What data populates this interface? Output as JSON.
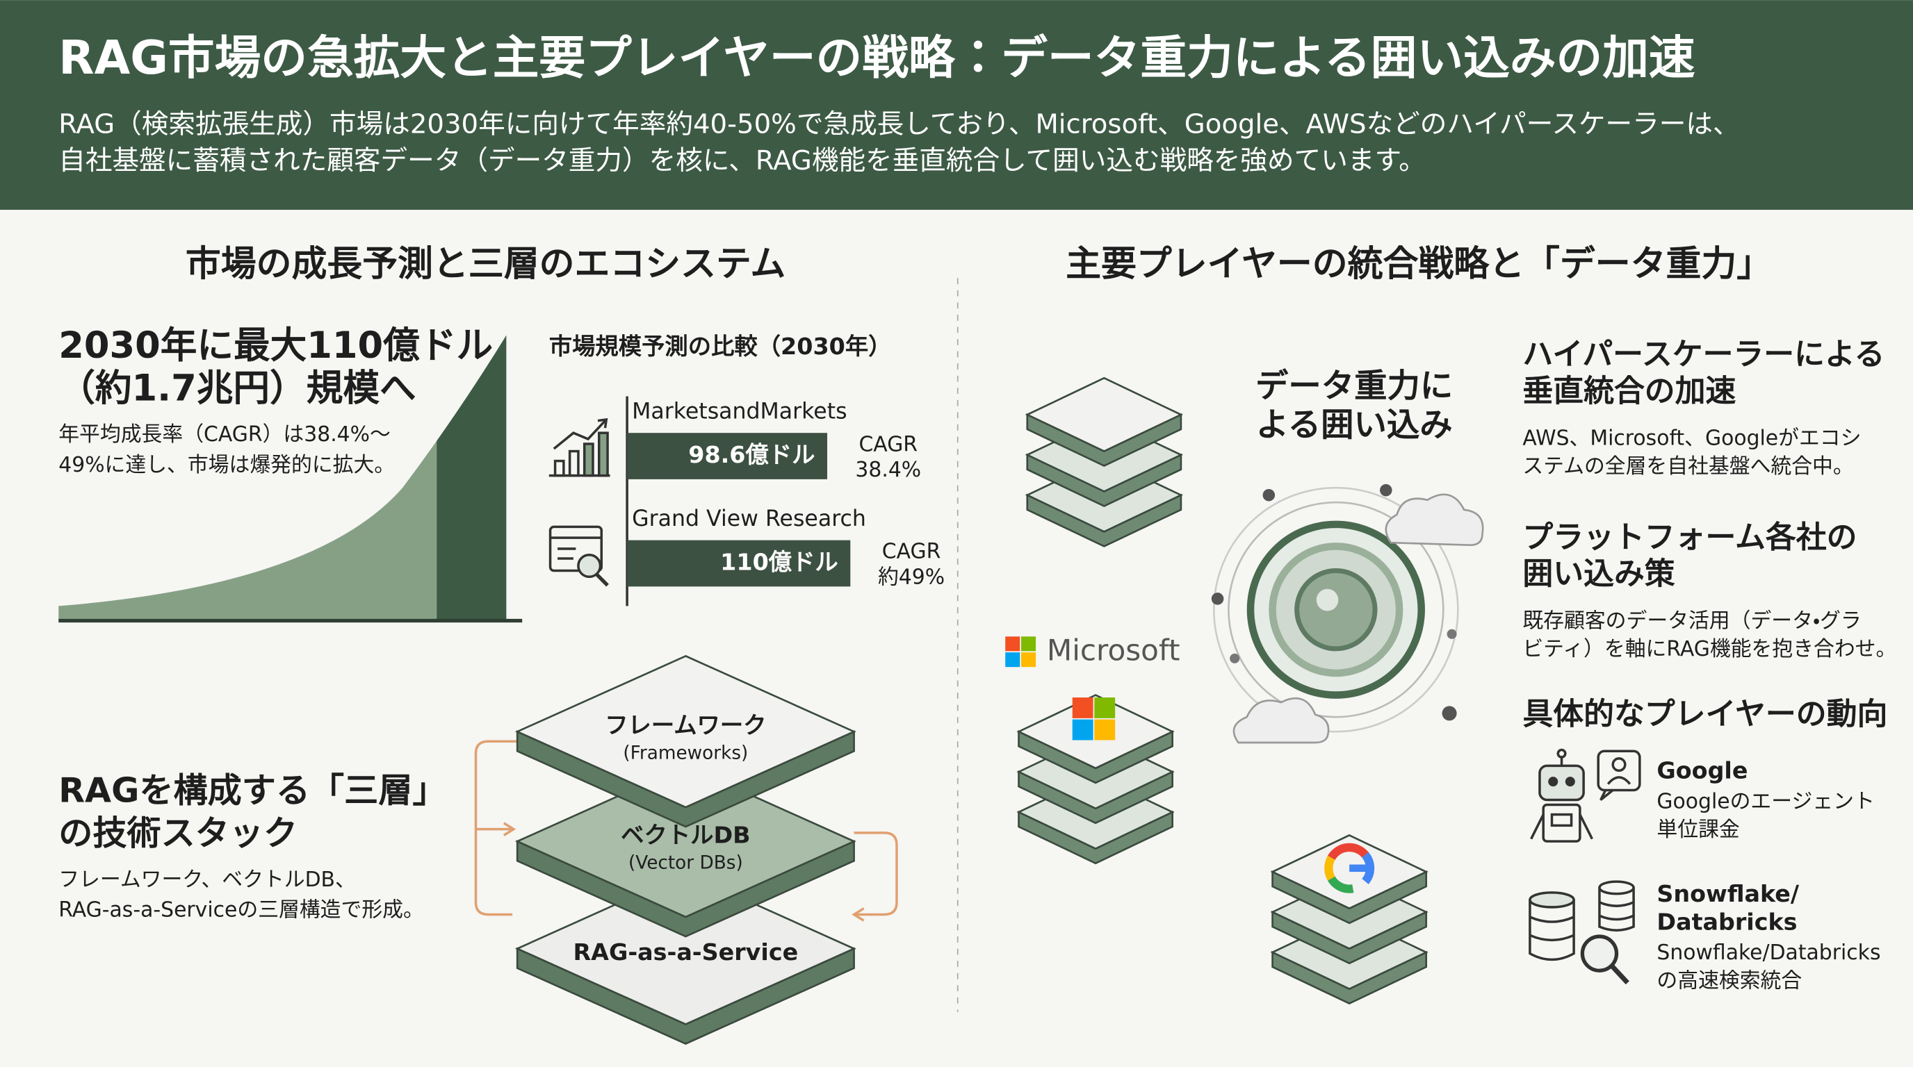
{
  "header": {
    "title": "RAG市場の急拡大と主要プレイヤーの戦略：データ重力による囲い込みの加速",
    "subtitle": [
      "RAG（検索拡張生成）市場は2030年に向けて年率約40-50%で急成長しており、Microsoft、Google、AWSなどのハイパースケーラーは、",
      "自社基盤に蓄積された顧客データ（データ重力）を核に、RAG機能を垂直統合して囲い込む戦略を強めています。"
    ]
  },
  "left": {
    "heading": "市場の成長予測と三層のエコシステム",
    "growth": {
      "headline": [
        "2030年に最大110億ドル",
        "（約1.7兆円）規模へ"
      ],
      "description": [
        "年平均成長率（CAGR）は38.4%～",
        "49%に達し、市場は爆発的に拡大。"
      ]
    },
    "stack": {
      "headline": [
        "RAGを構成する「三層」",
        "の技術スタック"
      ],
      "description": [
        "フレームワーク、ベクトルDB、",
        "RAG-as-a-Serviceの三層構造で形成。"
      ],
      "layers": [
        {
          "name": "フレームワーク",
          "sub": "(Frameworks)"
        },
        {
          "name": "ベクトルDB",
          "sub": "(Vector DBs)"
        },
        {
          "name": "RAG-as-a-Service"
        }
      ]
    }
  },
  "chart_data": {
    "type": "bar",
    "title": "市場規模予測の比較（2030年）",
    "categories": [
      "MarketsandMarkets",
      "Grand View Research"
    ],
    "values": [
      98.6,
      110
    ],
    "value_labels": [
      "98.6億ドル",
      "110億ドル"
    ],
    "color": "#3d5142",
    "annotations": [
      [
        "CAGR",
        "38.4%"
      ],
      [
        "CAGR",
        "約49%"
      ]
    ]
  },
  "right": {
    "heading": "主要プレイヤーの統合戦略と「データ重力」",
    "center_label": [
      "データ重力に",
      "よる囲い込み"
    ],
    "logo": "Microsoft",
    "sections": [
      {
        "title": [
          "ハイパースケーラーによる",
          "垂直統合の加速"
        ],
        "description": [
          "AWS、Microsoft、Googleがエコシ",
          "ステムの全層を自社基盤へ統合中。"
        ]
      },
      {
        "title": [
          "プラットフォーム各社の",
          "囲い込み策"
        ],
        "description": [
          "既存顧客のデータ活用（データ・グラ",
          "ビティ）を軸にRAG機能を抱き合わせ。"
        ]
      }
    ],
    "players_title": "具体的なプレイヤーの動向",
    "players": [
      {
        "name": [
          "Google"
        ],
        "description": [
          "Googleのエージェント",
          "単位課金"
        ]
      },
      {
        "name": [
          "Snowflake/",
          "Databricks"
        ],
        "description": [
          "Snowflake/Databricks",
          "の高速検索統合"
        ]
      }
    ]
  }
}
